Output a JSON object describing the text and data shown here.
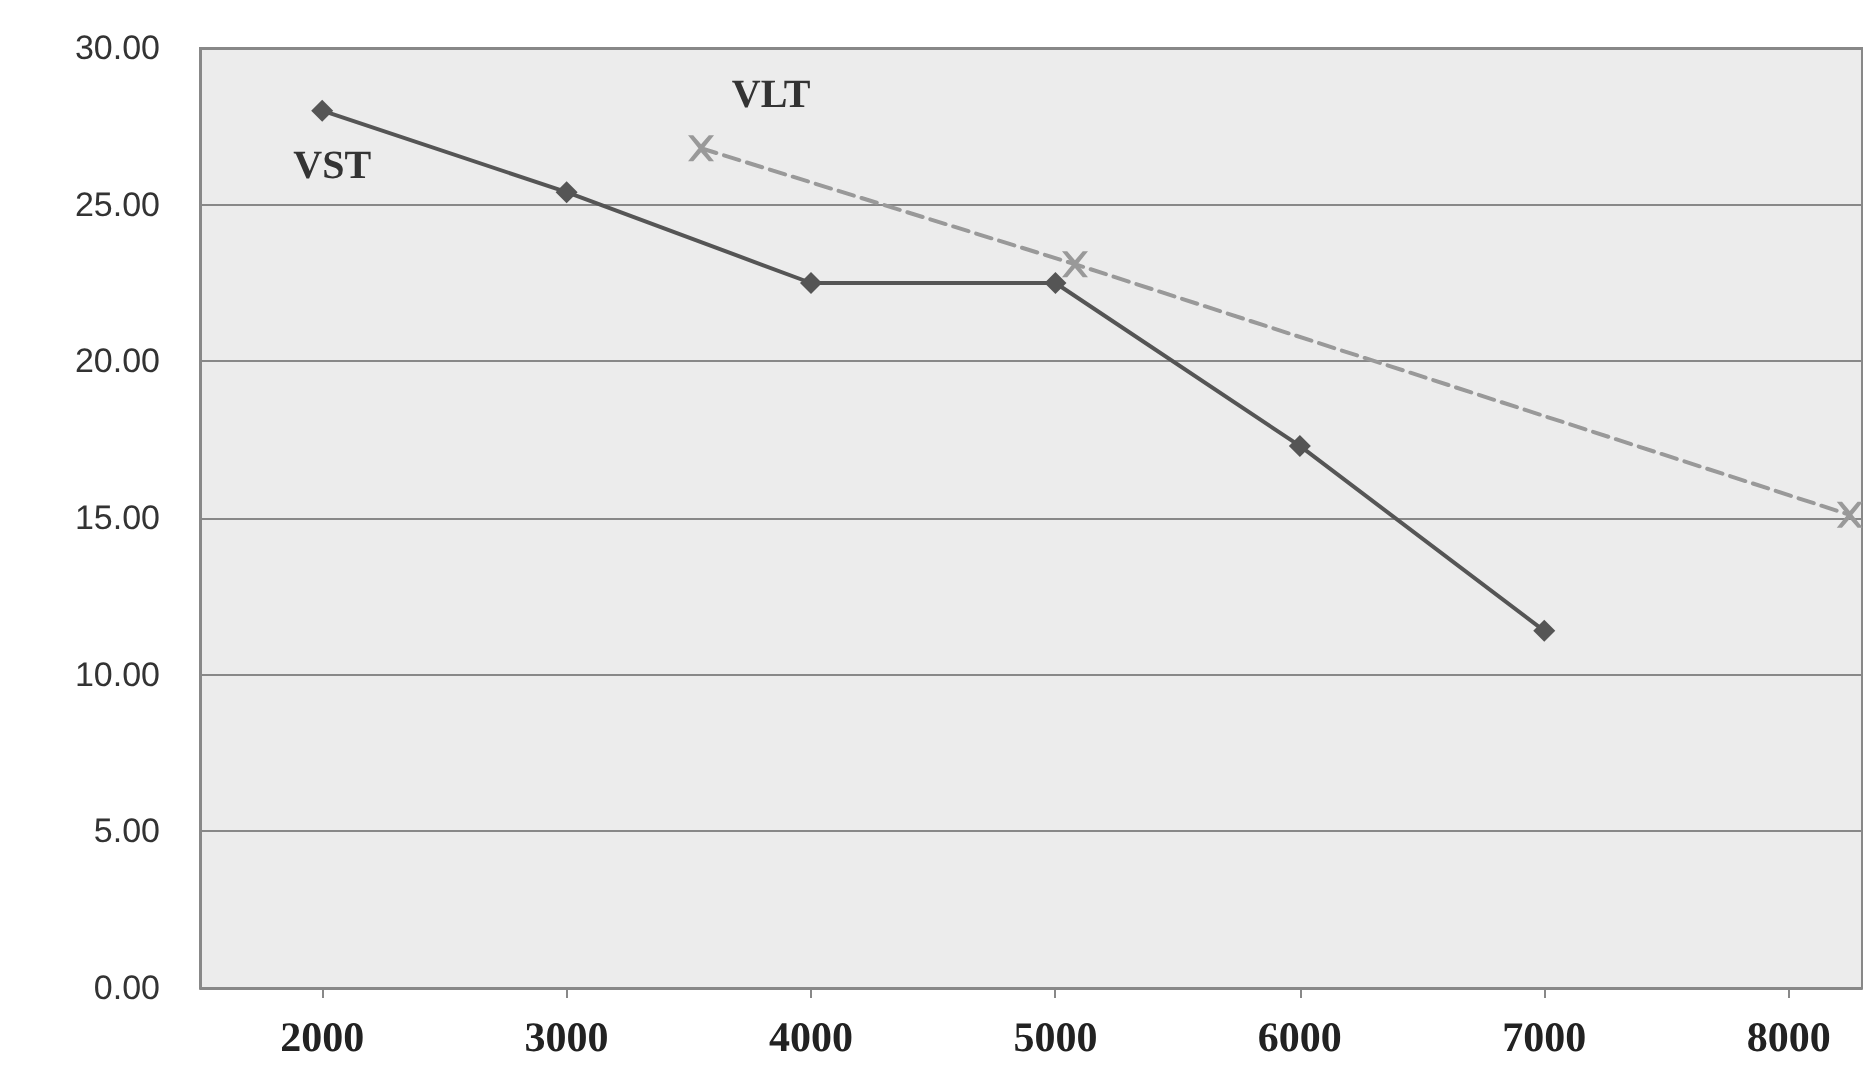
{
  "chart_data": {
    "type": "line",
    "xlim": [
      1500,
      8300
    ],
    "xticks": [
      2000,
      3000,
      4000,
      5000,
      6000,
      7000,
      8000
    ],
    "ylim": [
      0,
      30
    ],
    "yticks": [
      {
        "value": 0,
        "label": "0.00"
      },
      {
        "value": 5,
        "label": "5.00"
      },
      {
        "value": 10,
        "label": "10.00"
      },
      {
        "value": 15,
        "label": "15.00"
      },
      {
        "value": 20,
        "label": "20.00"
      },
      {
        "value": 25,
        "label": "25.00"
      },
      {
        "value": 30,
        "label": "30.00"
      }
    ],
    "grid": "y",
    "legend": false,
    "series": [
      {
        "name": "VST",
        "color": "#555555",
        "marker": "diamond",
        "line_style": "solid",
        "x": [
          2000,
          3000,
          4000,
          5000,
          6000,
          7000
        ],
        "values": [
          28.0,
          25.4,
          22.5,
          22.5,
          17.3,
          11.4
        ]
      },
      {
        "name": "VLT",
        "color": "#999999",
        "marker": "cross",
        "line_style": "dashed",
        "x": [
          3550,
          5080,
          8250
        ],
        "values": [
          26.8,
          23.1,
          15.1
        ]
      }
    ]
  }
}
